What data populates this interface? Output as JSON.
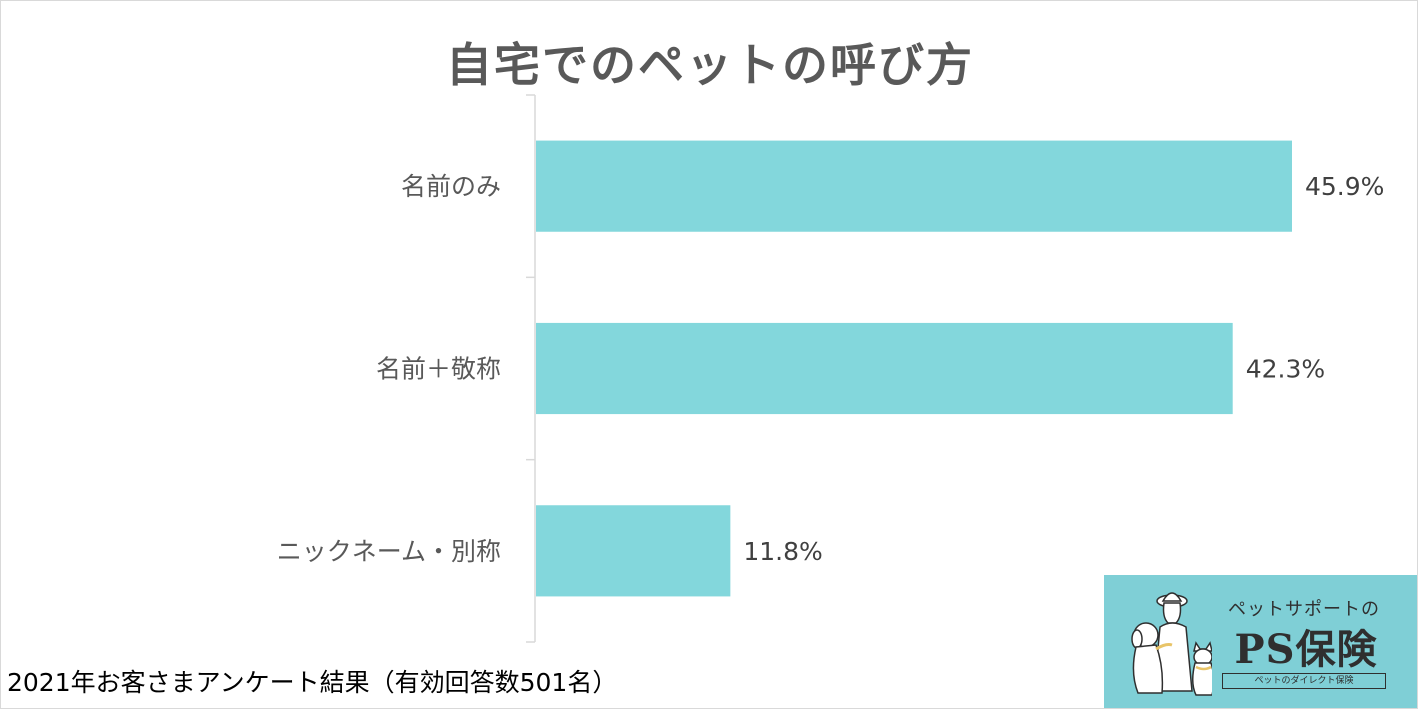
{
  "chart_data": {
    "type": "bar",
    "orientation": "horizontal",
    "title": "自宅でのペットの呼び方",
    "categories": [
      "名前のみ",
      "名前＋敬称",
      "ニックネーム・別称"
    ],
    "values": [
      45.9,
      42.3,
      11.8
    ],
    "value_labels": [
      "45.9%",
      "42.3%",
      "11.8%"
    ],
    "unit": "%",
    "xlim": [
      0,
      48
    ],
    "grid": false,
    "bar_color": "#83d7dc"
  },
  "footnote": "2021年お客さまアンケート結果（有効回答数501名）",
  "logo": {
    "tagline": "ペットサポートの",
    "name": "PS保険",
    "subtitle": "ペットのダイレクト保険",
    "background": "#7fcfd6"
  }
}
